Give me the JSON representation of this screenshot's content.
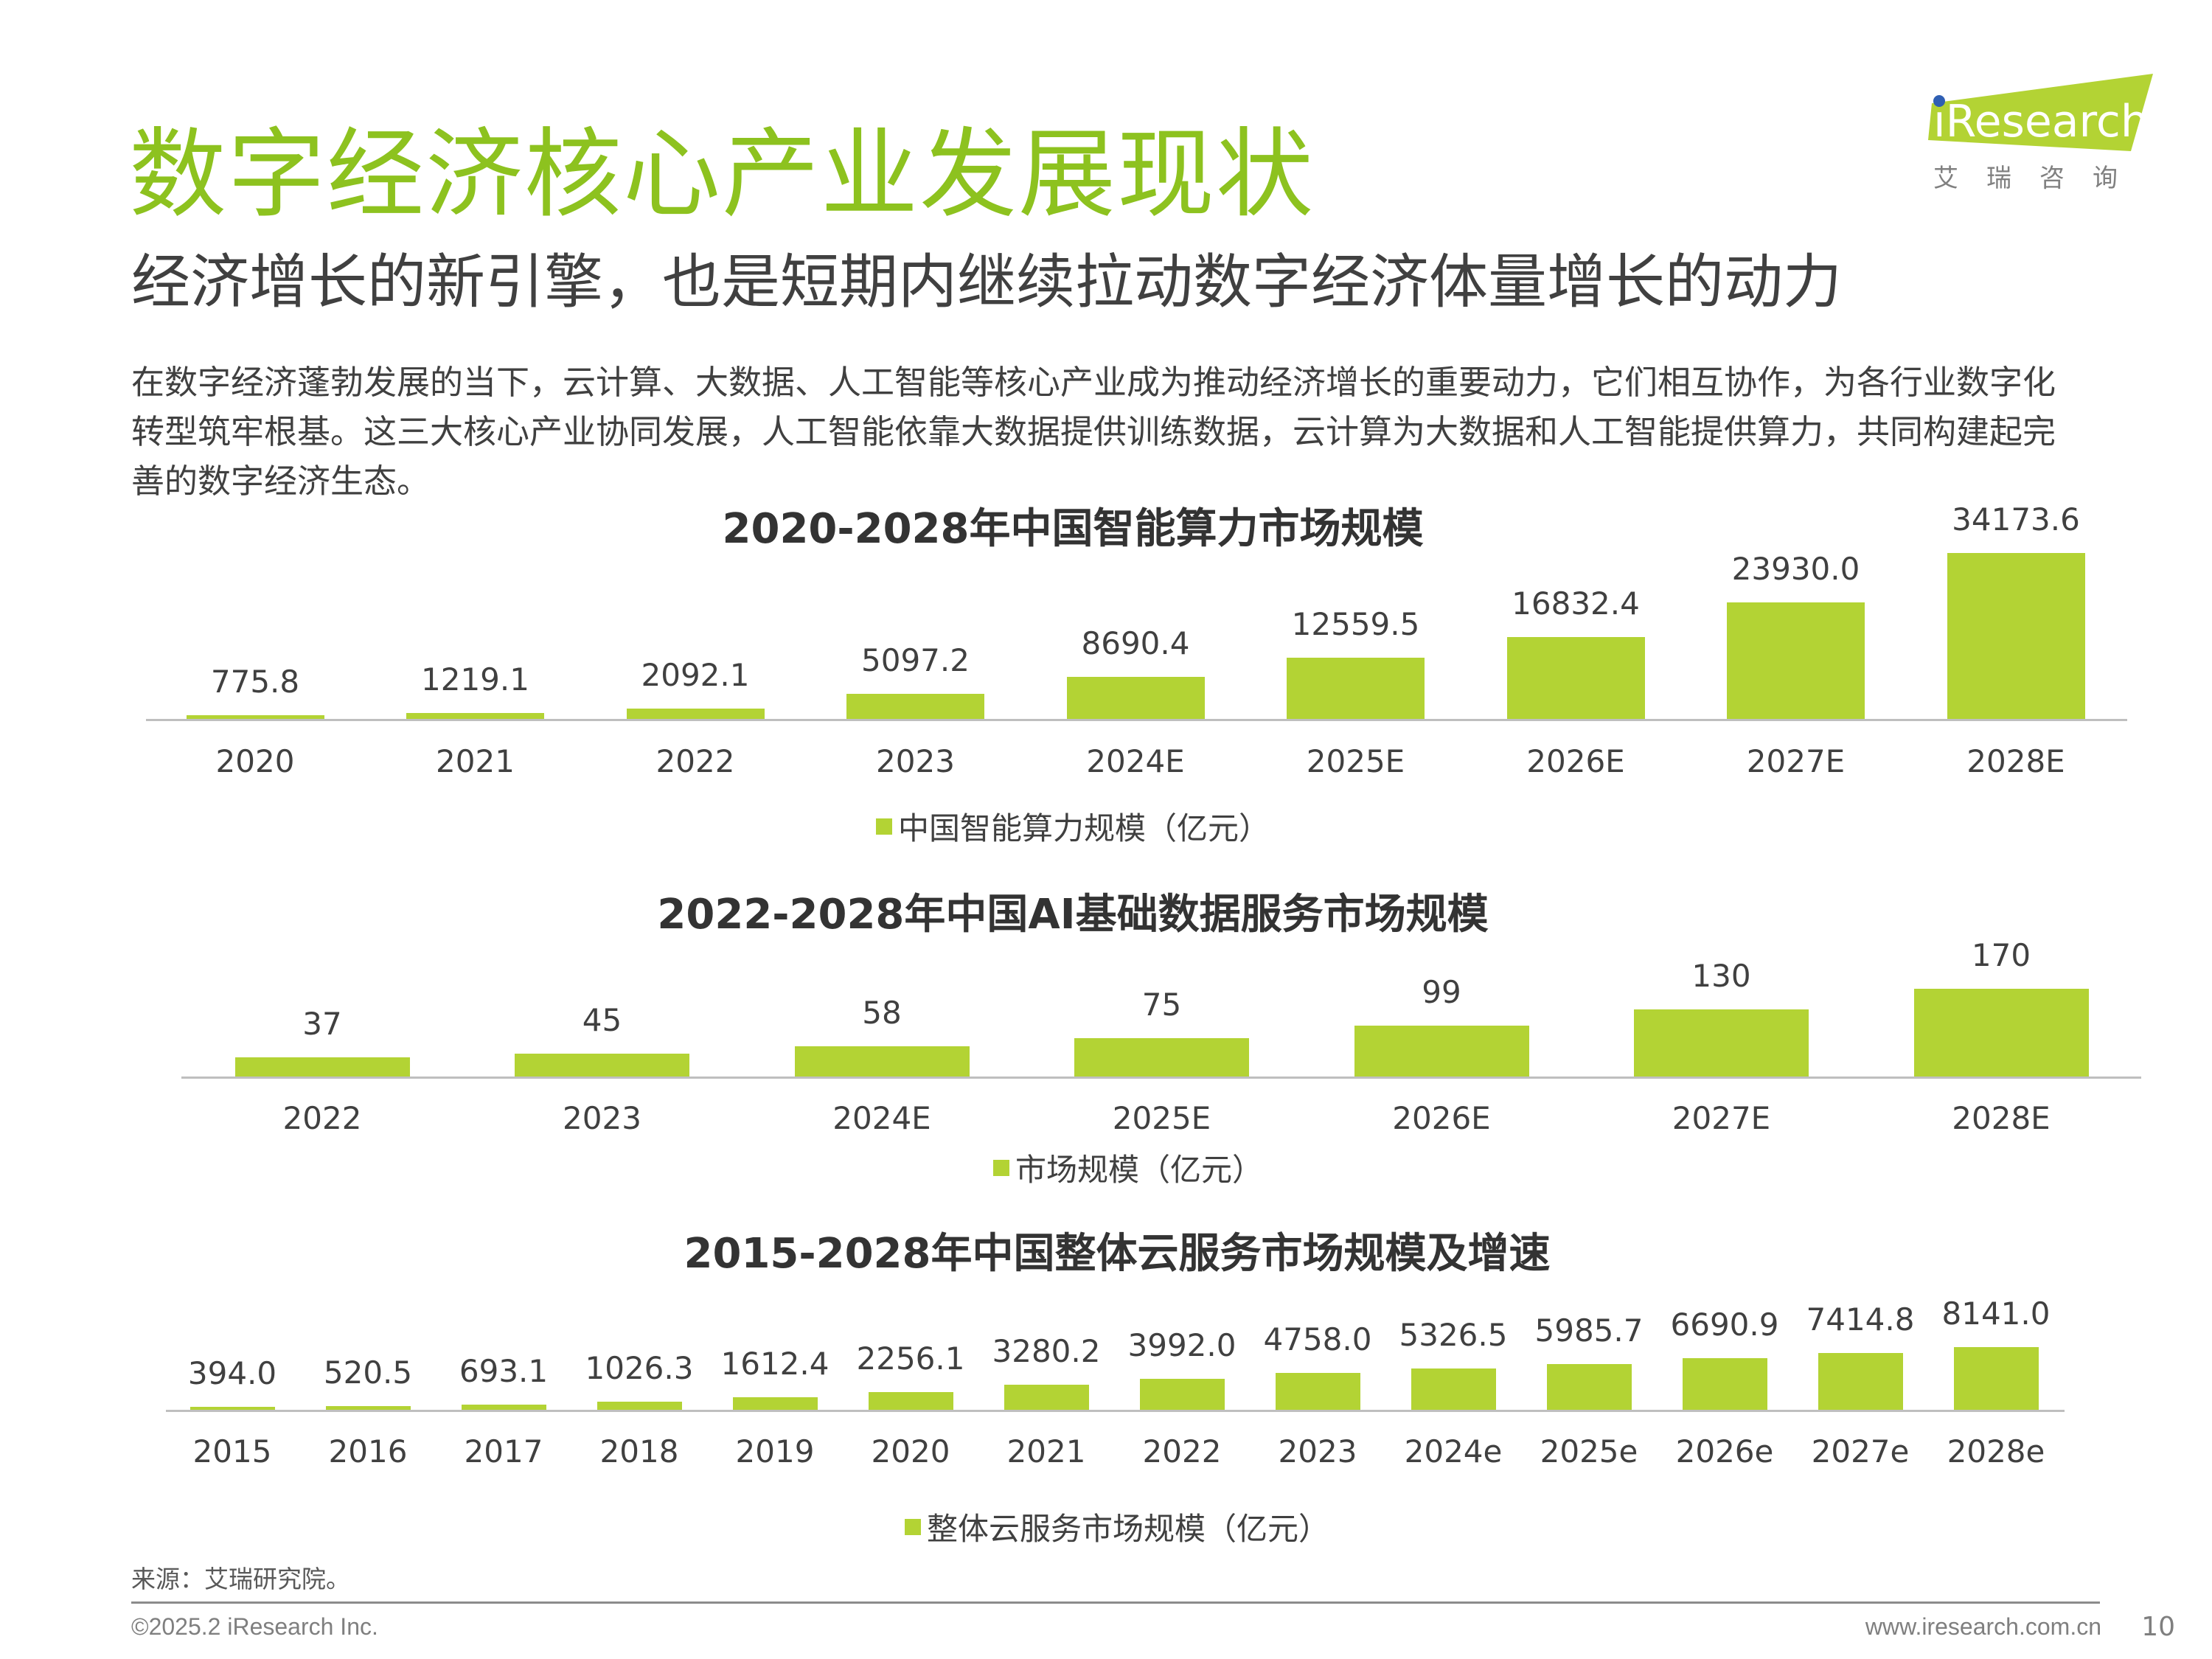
{
  "header": {
    "title": "数字经济核心产业发展现状",
    "subtitle": "经济增长的新引擎，也是短期内继续拉动数字经济体量增长的动力",
    "logo_text": "iResearch",
    "logo_cn": "艾 瑞 咨 询"
  },
  "body_text": "在数字经济蓬勃发展的当下，云计算、大数据、人工智能等核心产业成为推动经济增长的重要动力，它们相互协作，为各行业数字化转型筑牢根基。这三大核心产业协同发展，人工智能依靠大数据提供训练数据，云计算为大数据和人工智能提供算力，共同构建起完善的数字经济生态。",
  "colors": {
    "title": "#8dc21f",
    "bar": "#b3d334",
    "logo_dot": "#2f5fb3"
  },
  "chart_data": [
    {
      "type": "bar",
      "title": "2020-2028年中国智能算力市场规模",
      "categories": [
        "2020",
        "2021",
        "2022",
        "2023",
        "2024E",
        "2025E",
        "2026E",
        "2027E",
        "2028E"
      ],
      "series": [
        {
          "name": "中国智能算力规模（亿元）",
          "values": [
            775.8,
            1219.1,
            2092.1,
            5097.2,
            8690.4,
            12559.5,
            16832.4,
            23930.0,
            34173.6
          ]
        }
      ],
      "value_labels": [
        "775.8",
        "1219.1",
        "2092.1",
        "5097.2",
        "8690.4",
        "12559.5",
        "16832.4",
        "23930.0",
        "34173.6"
      ],
      "legend": "bottom",
      "grid": false
    },
    {
      "type": "bar",
      "title": "2022-2028年中国AI基础数据服务市场规模",
      "categories": [
        "2022",
        "2023",
        "2024E",
        "2025E",
        "2026E",
        "2027E",
        "2028E"
      ],
      "series": [
        {
          "name": "市场规模（亿元）",
          "values": [
            37,
            45,
            58,
            75,
            99,
            130,
            170
          ]
        }
      ],
      "value_labels": [
        "37",
        "45",
        "58",
        "75",
        "99",
        "130",
        "170"
      ],
      "legend": "bottom",
      "grid": false
    },
    {
      "type": "bar",
      "title": "2015-2028年中国整体云服务市场规模及增速",
      "categories": [
        "2015",
        "2016",
        "2017",
        "2018",
        "2019",
        "2020",
        "2021",
        "2022",
        "2023",
        "2024e",
        "2025e",
        "2026e",
        "2027e",
        "2028e"
      ],
      "series": [
        {
          "name": "整体云服务市场规模（亿元）",
          "values": [
            394.0,
            520.5,
            693.1,
            1026.3,
            1612.4,
            2256.1,
            3280.2,
            3992.0,
            4758.0,
            5326.5,
            5985.7,
            6690.9,
            7414.8,
            8141.0
          ]
        }
      ],
      "value_labels": [
        "394.0",
        "520.5",
        "693.1",
        "1026.3",
        "1612.4",
        "2256.1",
        "3280.2",
        "3992.0",
        "4758.0",
        "5326.5",
        "5985.7",
        "6690.9",
        "7414.8",
        "8141.0"
      ],
      "legend": "bottom",
      "grid": false
    }
  ],
  "footer": {
    "source": "来源：艾瑞研究院。",
    "copyright": "©2025.2 iResearch Inc.",
    "url": "www.iresearch.com.cn",
    "page": "10"
  }
}
